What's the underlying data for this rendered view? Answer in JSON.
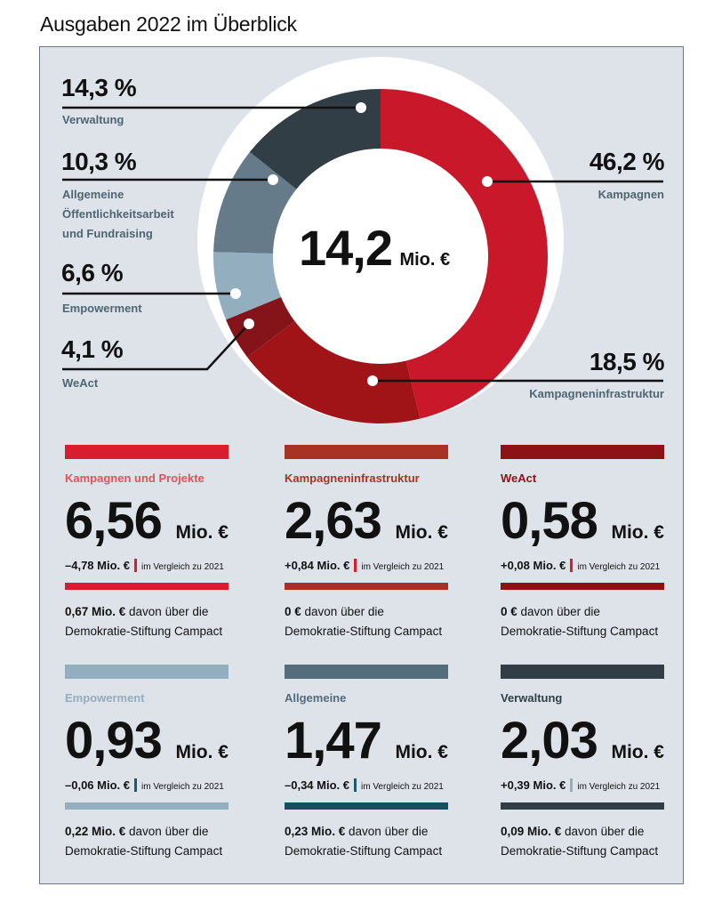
{
  "title": "Ausgaben 2022 im Überblick",
  "chart_data": {
    "type": "pie",
    "variant": "donut",
    "center_value": "14,2",
    "center_unit": "Mio. €",
    "slices": [
      {
        "label": "Kampagnen",
        "value": 46.2,
        "pct_label": "46,2 %",
        "color": "#c8182a"
      },
      {
        "label": "Kampagneninfrastruktur",
        "value": 18.5,
        "pct_label": "18,5 %",
        "color": "#a01418"
      },
      {
        "label": "WeAct",
        "value": 4.1,
        "pct_label": "4,1 %",
        "color": "#84141a"
      },
      {
        "label": "Empowerment",
        "value": 6.6,
        "pct_label": "6,6 %",
        "color": "#93aebf"
      },
      {
        "label": "Allgemeine\nÖffentlichkeitsarbeit\nund Fundraising",
        "value": 10.3,
        "pct_label": "10,3 %",
        "color": "#657b8a"
      },
      {
        "label": "Verwaltung",
        "value": 14.3,
        "pct_label": "14,3 %",
        "color": "#323e46"
      }
    ]
  },
  "cards": [
    {
      "name": "Kampagnen und Projekte",
      "color": "#d81e2e",
      "name_color": "#e0525a",
      "value": "6,56",
      "unit": "Mio. €",
      "delta": "–4,78 Mio. €",
      "sep_color": "#d81e2e",
      "compare": "im Vergleich zu 2021",
      "note_bold": "0,67 Mio. €",
      "note_text": " davon über die",
      "note_line2": "Demokratie-Stiftung Campact"
    },
    {
      "name": "Kampagneninfrastruktur",
      "color": "#a83224",
      "name_color": "#a83224",
      "value": "2,63",
      "unit": "Mio. €",
      "delta": "+0,84 Mio. €",
      "sep_color": "#d81e2e",
      "compare": "im Vergleich zu 2021",
      "note_bold": "0 €",
      "note_text": " davon über die",
      "note_line2": "Demokratie-Stiftung Campact"
    },
    {
      "name": "WeAct",
      "color": "#8c1216",
      "name_color": "#8c1216",
      "value": "0,58",
      "unit": "Mio. €",
      "delta": "+0,08 Mio. €",
      "sep_color": "#d81e2e",
      "compare": "im Vergleich zu 2021",
      "note_bold": "0 €",
      "note_text": " davon über die",
      "note_line2": "Demokratie-Stiftung Campact"
    },
    {
      "name": "Empowerment",
      "color": "#93aebf",
      "name_color": "#93aebf",
      "value": "0,93",
      "unit": "Mio. €",
      "delta": "–0,06 Mio. €",
      "sep_color": "#1c5a6e",
      "compare": "im Vergleich zu 2021",
      "note_bold": "0,22 Mio. €",
      "note_text": " davon über die",
      "note_line2": "Demokratie-Stiftung Campact"
    },
    {
      "name": "Allgemeine",
      "color": "#536d7c",
      "name_color": "#536d7c",
      "value": "1,47",
      "unit": "Mio. €",
      "delta": "–0,34 Mio. €",
      "sep_color": "#1c5a6e",
      "compare": "im Vergleich zu 2021",
      "mid_color": "#14505f",
      "note_bold": "0,23 Mio. €",
      "note_text": " davon über die",
      "note_line2": "Demokratie-Stiftung Campact"
    },
    {
      "name": "Verwaltung",
      "color": "#323e46",
      "name_color": "#323e46",
      "value": "2,03",
      "unit": "Mio. €",
      "delta": "+0,39 Mio. €",
      "sep_color": "#93aebf",
      "compare": "im Vergleich zu 2021",
      "note_bold": "0,09 Mio. €",
      "note_text": " davon über die",
      "note_line2": "Demokratie-Stiftung Campact"
    }
  ]
}
